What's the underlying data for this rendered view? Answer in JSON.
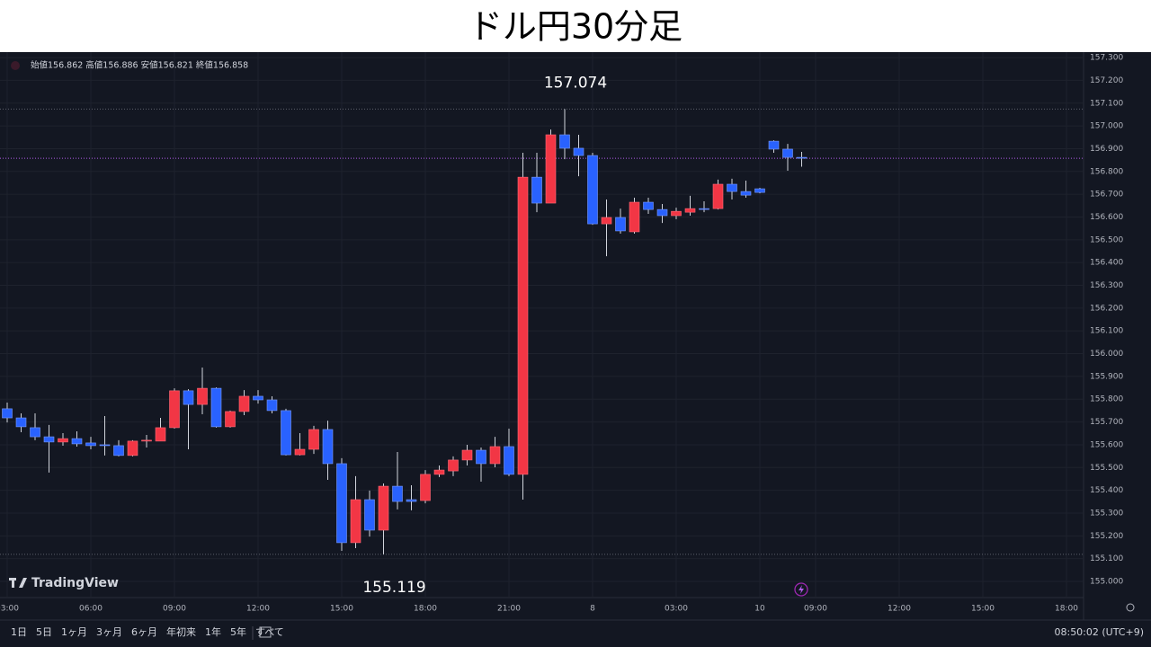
{
  "chart_data": {
    "type": "candlestick",
    "title": "ドル円30分足",
    "ohlc_legend": "始値156.862 高値156.886 安値156.821 終値156.858",
    "categories": [
      "03:00",
      null,
      null,
      null,
      null,
      null,
      "06:00",
      null,
      null,
      null,
      null,
      null,
      "09:00",
      null,
      null,
      null,
      null,
      null,
      "12:00",
      null,
      null,
      null,
      null,
      null,
      "15:00",
      null,
      null,
      null,
      null,
      null,
      "18:00",
      null,
      null,
      null,
      null,
      null,
      "21:00",
      null,
      null,
      null,
      null,
      null,
      "8",
      null,
      null,
      null,
      null,
      null,
      "03:00",
      null,
      null,
      null,
      null,
      null,
      "10",
      null,
      null,
      null,
      "09:00",
      null,
      null,
      null,
      null,
      null,
      "12:00",
      null,
      null,
      null,
      null,
      null,
      "15:00",
      null,
      null,
      null,
      null,
      null,
      "18:00"
    ],
    "open": [
      155.758,
      155.718,
      155.675,
      155.635,
      155.612,
      155.627,
      155.608,
      155.6,
      155.596,
      155.553,
      155.616,
      155.616,
      155.675,
      155.837,
      155.777,
      155.848,
      155.679,
      155.746,
      155.813,
      155.797,
      155.75,
      155.556,
      155.58,
      155.667,
      155.517,
      155.17,
      155.359,
      155.225,
      155.418,
      155.359,
      155.355,
      155.47,
      155.485,
      155.533,
      155.576,
      155.517,
      155.592,
      155.47,
      156.775,
      156.661,
      156.961,
      156.902,
      156.87,
      156.57,
      156.598,
      156.535,
      156.665,
      156.633,
      156.606,
      156.621,
      156.637,
      156.637,
      156.744,
      156.712,
      156.724,
      156.933,
      156.898,
      156.862,
      null,
      null,
      null,
      null,
      null,
      null,
      null,
      null,
      null,
      null,
      null,
      null,
      null,
      null,
      null,
      null,
      null,
      null,
      null
    ],
    "high": [
      155.785,
      155.738,
      155.738,
      155.687,
      155.651,
      155.659,
      155.635,
      155.726,
      155.62,
      155.62,
      155.643,
      155.718,
      155.848,
      155.844,
      155.939,
      155.852,
      155.75,
      155.84,
      155.84,
      155.813,
      155.758,
      155.651,
      155.683,
      155.706,
      155.541,
      155.462,
      155.399,
      155.43,
      155.568,
      155.422,
      155.489,
      155.509,
      155.549,
      155.6,
      155.588,
      155.635,
      155.671,
      156.882,
      156.882,
      156.984,
      157.074,
      156.961,
      156.882,
      156.677,
      156.637,
      156.685,
      156.685,
      156.657,
      156.641,
      156.693,
      156.669,
      156.764,
      156.768,
      156.76,
      156.728,
      156.937,
      156.921,
      156.886,
      null,
      null,
      null,
      null,
      null,
      null,
      null,
      null,
      null,
      null,
      null,
      null,
      null,
      null,
      null,
      null,
      null,
      null,
      null
    ],
    "low": [
      155.698,
      155.655,
      155.62,
      155.478,
      155.596,
      155.592,
      155.58,
      155.553,
      155.549,
      155.549,
      155.588,
      155.616,
      155.671,
      155.58,
      155.734,
      155.675,
      155.675,
      155.73,
      155.781,
      155.738,
      155.553,
      155.553,
      155.56,
      155.446,
      155.134,
      155.146,
      155.197,
      155.119,
      155.316,
      155.312,
      155.343,
      155.458,
      155.462,
      155.509,
      155.438,
      155.501,
      155.462,
      155.359,
      156.621,
      156.661,
      156.854,
      156.779,
      156.566,
      156.428,
      156.527,
      156.527,
      156.614,
      156.574,
      156.59,
      156.606,
      156.621,
      156.633,
      156.677,
      156.685,
      156.704,
      156.882,
      156.803,
      156.821,
      null,
      null,
      null,
      null,
      null,
      null,
      null,
      null,
      null,
      null,
      null,
      null,
      null,
      null,
      null,
      null,
      null,
      null,
      null
    ],
    "close": [
      155.718,
      155.679,
      155.635,
      155.612,
      155.627,
      155.604,
      155.596,
      155.596,
      155.553,
      155.616,
      155.62,
      155.675,
      155.837,
      155.777,
      155.848,
      155.679,
      155.746,
      155.813,
      155.797,
      155.75,
      155.556,
      155.58,
      155.667,
      155.517,
      155.17,
      155.359,
      155.225,
      155.418,
      155.351,
      155.351,
      155.47,
      155.489,
      155.533,
      155.576,
      155.517,
      155.592,
      155.47,
      156.775,
      156.661,
      156.961,
      156.902,
      156.87,
      156.57,
      156.598,
      156.539,
      156.665,
      156.633,
      156.606,
      156.625,
      156.637,
      156.633,
      156.744,
      156.712,
      156.696,
      156.708,
      156.898,
      156.862,
      156.858,
      null,
      null,
      null,
      null,
      null,
      null,
      null,
      null,
      null,
      null,
      null,
      null,
      null,
      null,
      null,
      null,
      null,
      null,
      null
    ],
    "ylim": [
      154.929,
      157.324
    ],
    "yticks": [
      {
        "value": 155.0,
        "label": "155.000"
      },
      {
        "value": 155.1,
        "label": "155.100"
      },
      {
        "value": 155.2,
        "label": "155.200"
      },
      {
        "value": 155.3,
        "label": "155.300"
      },
      {
        "value": 155.4,
        "label": "155.400"
      },
      {
        "value": 155.5,
        "label": "155.500"
      },
      {
        "value": 155.6,
        "label": "155.600"
      },
      {
        "value": 155.7,
        "label": "155.700"
      },
      {
        "value": 155.8,
        "label": "155.800"
      },
      {
        "value": 155.9,
        "label": "155.900"
      },
      {
        "value": 156.0,
        "label": "156.000"
      },
      {
        "value": 156.1,
        "label": "156.100"
      },
      {
        "value": 156.2,
        "label": "156.200"
      },
      {
        "value": 156.3,
        "label": "156.300"
      },
      {
        "value": 156.4,
        "label": "156.400"
      },
      {
        "value": 156.5,
        "label": "156.500"
      },
      {
        "value": 156.6,
        "label": "156.600"
      },
      {
        "value": 156.7,
        "label": "156.700"
      },
      {
        "value": 156.8,
        "label": "156.800"
      },
      {
        "value": 156.9,
        "label": "156.900"
      },
      {
        "value": 157.0,
        "label": "157.000"
      },
      {
        "value": 157.1,
        "label": "157.100"
      },
      {
        "value": 157.2,
        "label": "157.200"
      },
      {
        "value": 157.3,
        "label": "157.300"
      }
    ],
    "annotations": [
      157.074,
      155.119
    ],
    "up_color": "#f23645",
    "down_color": "#2962ff",
    "wick_color": "#d1d4dc",
    "price_line_color": "#b05ce8",
    "grid": true
  },
  "watermark": "TradingView",
  "toolbar": {
    "ranges": [
      "1日",
      "5日",
      "1ヶ月",
      "3ヶ月",
      "6ヶ月",
      "年初来",
      "1年",
      "5年",
      "すべて"
    ],
    "clock": "08:50:02 (UTC+9)"
  }
}
